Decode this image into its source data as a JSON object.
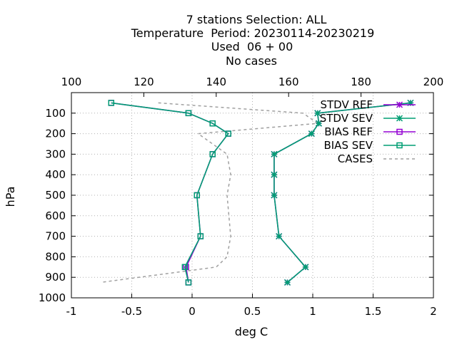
{
  "chart_data": {
    "type": "line",
    "title_lines": [
      "7 stations Selection: ALL",
      "Temperature  Period: 20230114-20230219",
      "Used  06 + 00",
      "No cases"
    ],
    "xlabel": "deg C",
    "ylabel": "hPa",
    "xlim": [
      -1,
      2
    ],
    "x2lim": [
      100,
      200
    ],
    "ylim": [
      1000,
      0
    ],
    "xticks": [
      -1,
      -0.5,
      0,
      0.5,
      1,
      1.5,
      2
    ],
    "xtick_labels": [
      "-1",
      "-0.5",
      "0",
      "0.5",
      "1",
      "1.5",
      "2"
    ],
    "x2ticks": [
      100,
      120,
      140,
      160,
      180,
      200
    ],
    "x2tick_labels": [
      "100",
      "120",
      "140",
      "160",
      "180",
      "200"
    ],
    "yticks": [
      100,
      200,
      300,
      400,
      500,
      600,
      700,
      800,
      900,
      1000
    ],
    "ytick_labels": [
      "100",
      "200",
      "300",
      "400",
      "500",
      "600",
      "700",
      "800",
      "900",
      "1000"
    ],
    "grid": true,
    "legend_position": "top-right",
    "series": [
      {
        "name": "STDV REF",
        "axis": "x1",
        "color": "#9400d3",
        "marker": "cross",
        "dash": false,
        "x": [
          1.81,
          1.04,
          1.05,
          0.99,
          0.68,
          0.68,
          0.68,
          0.72,
          0.94,
          0.79
        ],
        "y": [
          50,
          100,
          150,
          200,
          300,
          400,
          500,
          700,
          850,
          925
        ]
      },
      {
        "name": "STDV SEV",
        "axis": "x1",
        "color": "#009e73",
        "marker": "cross",
        "dash": false,
        "x": [
          1.81,
          1.04,
          1.05,
          0.99,
          0.68,
          0.68,
          0.68,
          0.72,
          0.94,
          0.79
        ],
        "y": [
          50,
          100,
          150,
          200,
          300,
          400,
          500,
          700,
          850,
          925
        ]
      },
      {
        "name": "BIAS REF",
        "axis": "x1",
        "color": "#9400d3",
        "marker": "square",
        "dash": false,
        "x": [
          -0.67,
          -0.03,
          0.17,
          0.3,
          0.17,
          0.04,
          0.07,
          -0.05,
          -0.03
        ],
        "y": [
          50,
          100,
          150,
          200,
          300,
          500,
          700,
          850,
          925
        ]
      },
      {
        "name": "BIAS SEV",
        "axis": "x1",
        "color": "#009e73",
        "marker": "square",
        "dash": false,
        "x": [
          -0.67,
          -0.03,
          0.17,
          0.3,
          0.17,
          0.04,
          0.07,
          -0.06,
          -0.03
        ],
        "y": [
          50,
          100,
          150,
          200,
          300,
          500,
          700,
          850,
          925
        ]
      },
      {
        "name": "CASES",
        "axis": "x2",
        "color": "#a0a0a0",
        "marker": "none",
        "dash": true,
        "x": [
          124,
          164,
          168,
          135,
          143,
          144,
          143,
          144,
          143,
          140,
          108
        ],
        "y": [
          50,
          100,
          150,
          200,
          300,
          400,
          500,
          700,
          800,
          850,
          925
        ]
      }
    ]
  }
}
